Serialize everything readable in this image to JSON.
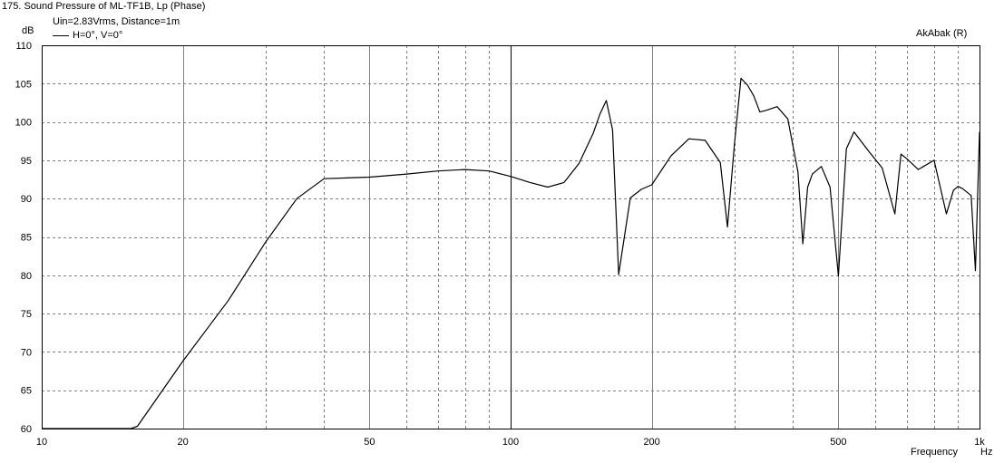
{
  "header": {
    "title": "175. Sound Pressure of ML-TF1B, Lp (Phase)",
    "subtitle": "Uin=2.83Vrms, Distance=1m",
    "brand": "AkAbak (R)"
  },
  "axis_labels": {
    "y_unit": "dB",
    "x_name": "Frequency",
    "x_unit": "Hz"
  },
  "colors": {
    "background": "#ffffff",
    "curve": "#000000",
    "grid": "#808080",
    "axis": "#000000"
  },
  "chart_data": {
    "type": "line",
    "title": "175. Sound Pressure of ML-TF1B, Lp (Phase)",
    "subtitle": "Uin=2.83Vrms, Distance=1m",
    "xlabel": "Frequency",
    "xunit": "Hz",
    "ylabel": "dB",
    "xscale": "log",
    "xlim": [
      10,
      1000
    ],
    "ylim": [
      60,
      110
    ],
    "grid": true,
    "legend_position": "top-left",
    "x_tick_labels": [
      {
        "value": 10,
        "label": "10"
      },
      {
        "value": 20,
        "label": "20"
      },
      {
        "value": 50,
        "label": "50"
      },
      {
        "value": 100,
        "label": "100"
      },
      {
        "value": 200,
        "label": "200"
      },
      {
        "value": 500,
        "label": "500"
      },
      {
        "value": 1000,
        "label": "1k"
      }
    ],
    "y_ticks": [
      60,
      65,
      70,
      75,
      80,
      85,
      90,
      95,
      100,
      105,
      110
    ],
    "series": [
      {
        "name": "H=0°, V=0°",
        "x": [
          10,
          15.5,
          16,
          20,
          25,
          30,
          35,
          40,
          50,
          60,
          70,
          80,
          90,
          100,
          110,
          120,
          130,
          140,
          150,
          155,
          160,
          165,
          170,
          180,
          190,
          200,
          220,
          240,
          260,
          280,
          290,
          300,
          310,
          320,
          330,
          340,
          350,
          370,
          390,
          410,
          420,
          430,
          440,
          460,
          480,
          500,
          520,
          540,
          580,
          620,
          660,
          680,
          700,
          740,
          800,
          850,
          880,
          900,
          920,
          960,
          980,
          1000
        ],
        "values": [
          60,
          60,
          60.3,
          68.8,
          76.7,
          84.3,
          90.0,
          92.6,
          92.8,
          93.2,
          93.6,
          93.8,
          93.6,
          92.9,
          92.1,
          91.5,
          92.1,
          94.6,
          98.5,
          101.0,
          102.8,
          99.0,
          80.1,
          90.1,
          91.2,
          91.8,
          95.6,
          97.8,
          97.6,
          94.7,
          86.3,
          97.0,
          105.7,
          104.8,
          103.4,
          101.3,
          101.5,
          102.0,
          100.4,
          93.5,
          84.1,
          91.5,
          93.2,
          94.2,
          91.5,
          79.9,
          96.5,
          98.7,
          96.2,
          94.0,
          88.0,
          95.8,
          95.2,
          93.8,
          95.0,
          88.0,
          91.1,
          91.6,
          91.3,
          90.4,
          80.6,
          98.7
        ]
      }
    ]
  }
}
